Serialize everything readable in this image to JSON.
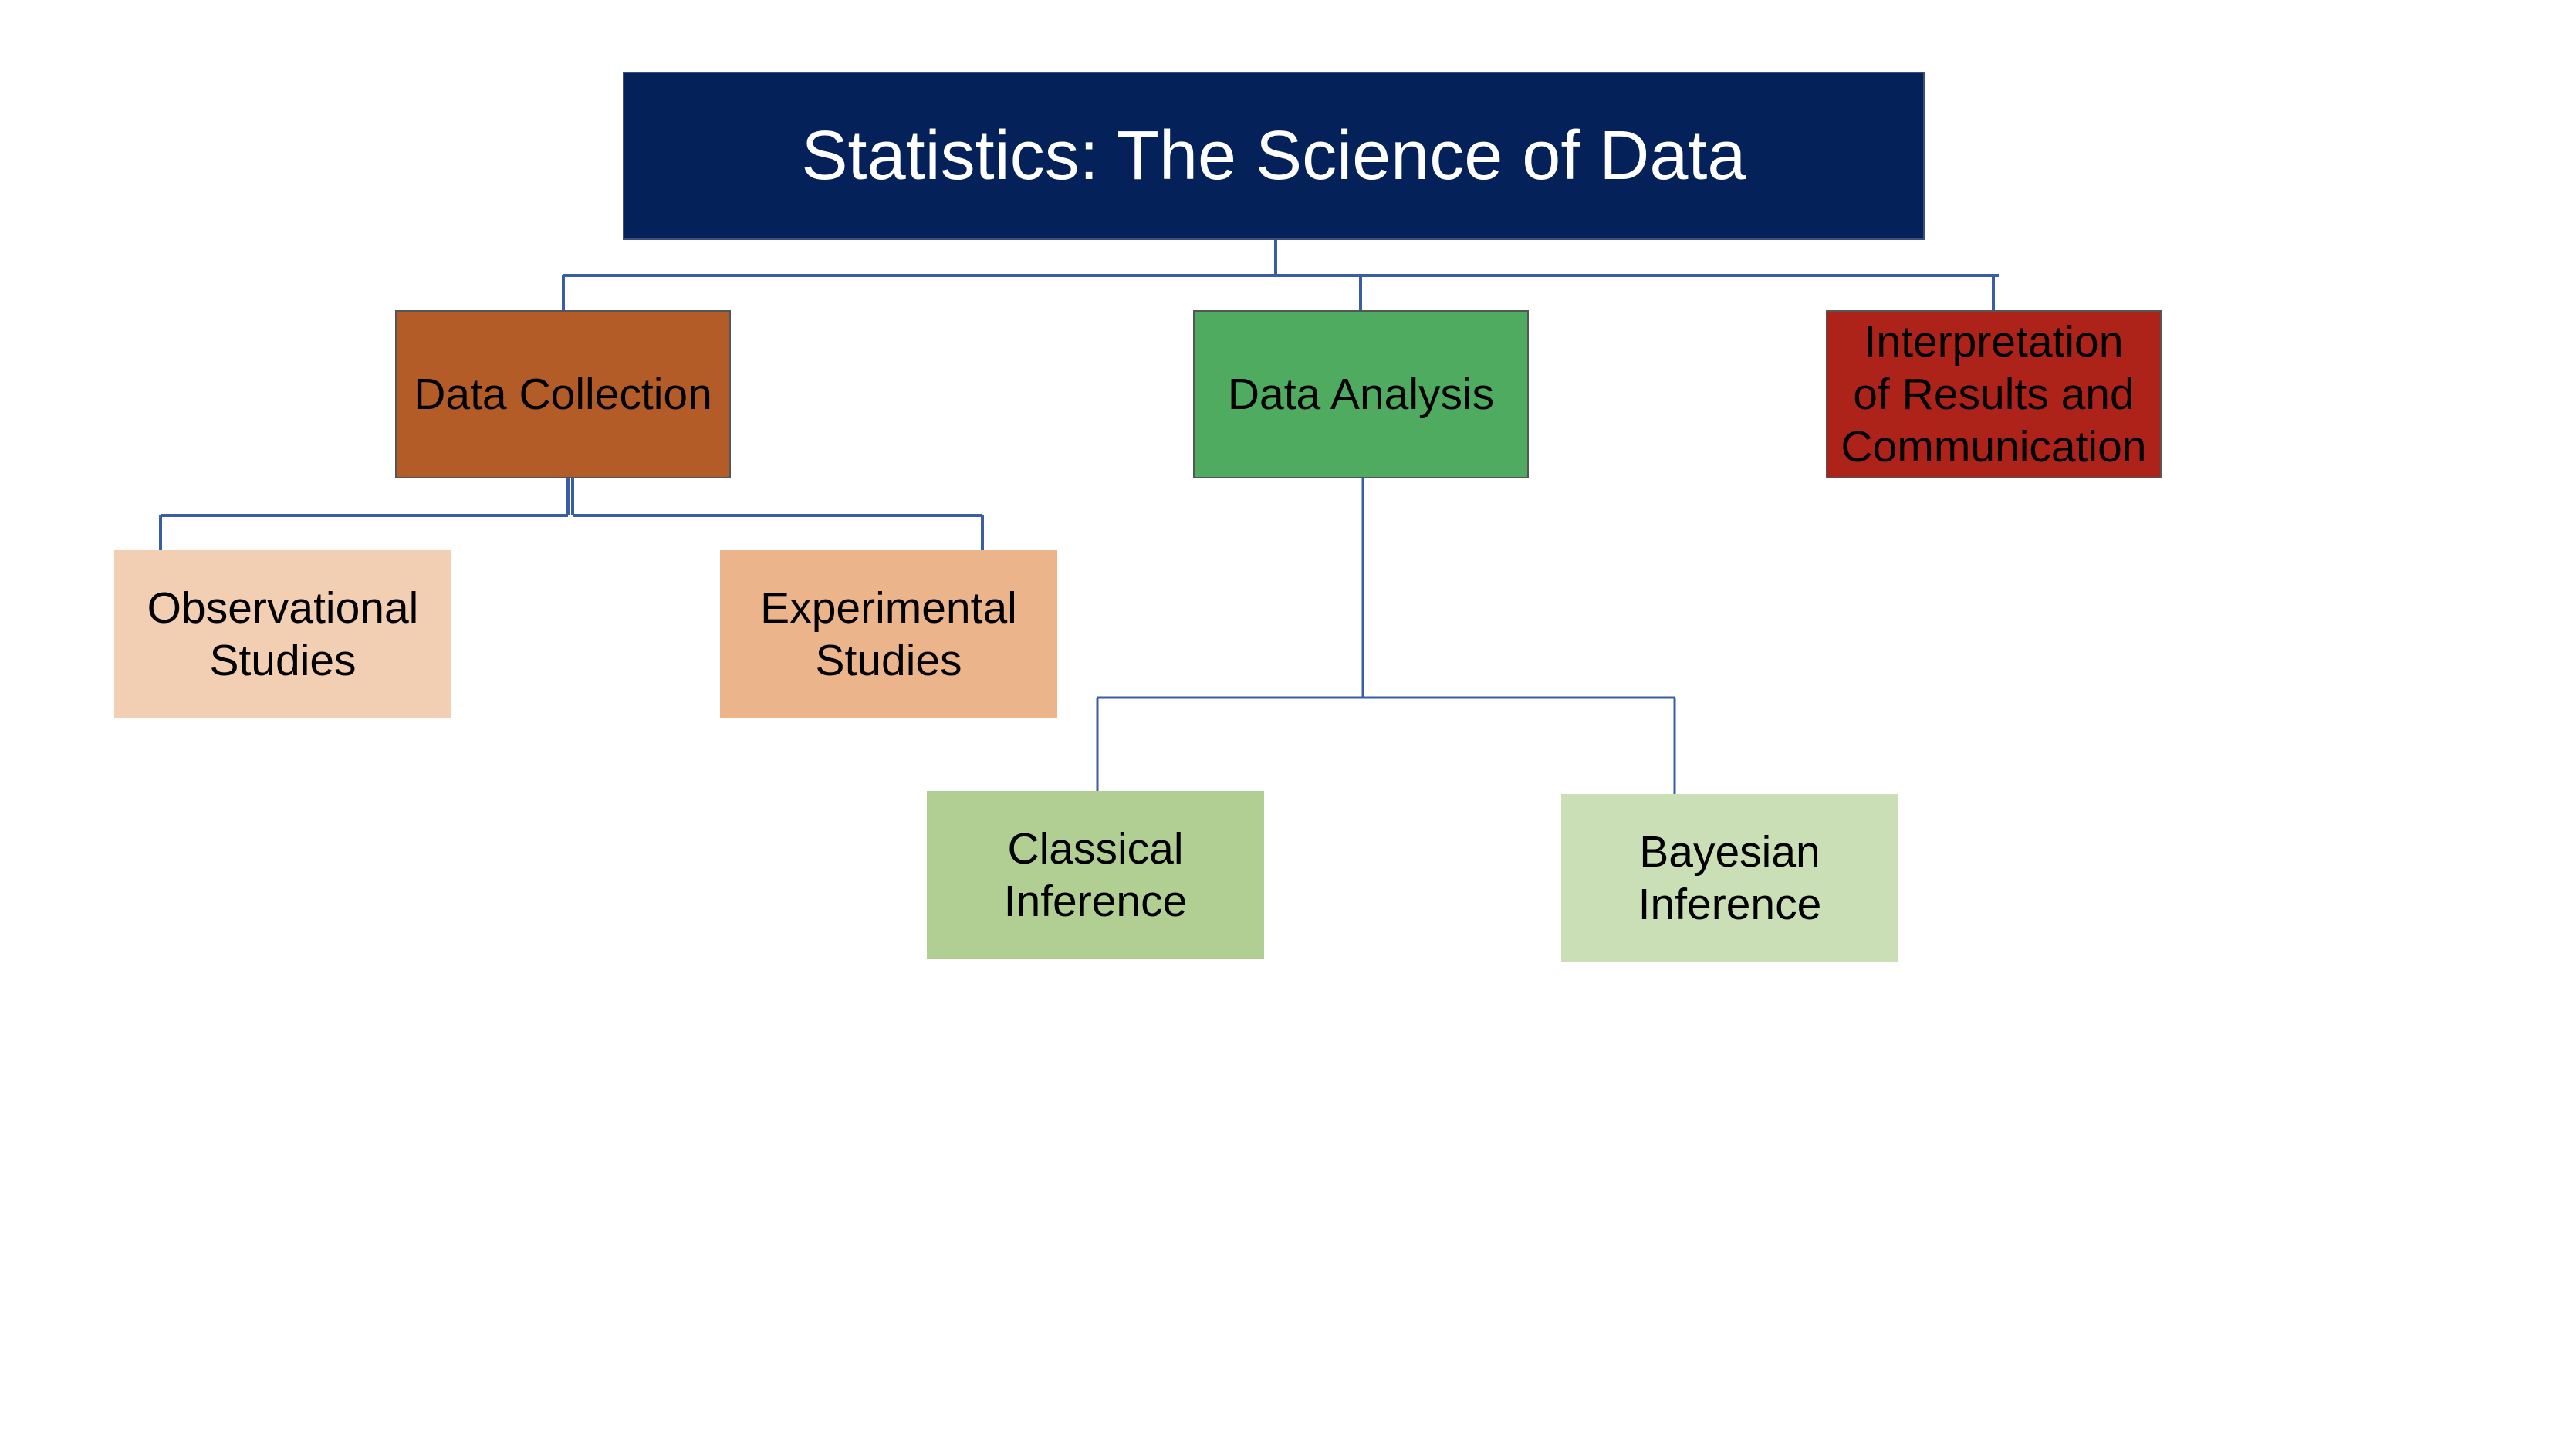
{
  "root": {
    "label": "Statistics: The Science of Data",
    "color": "#05215a"
  },
  "branches": [
    {
      "label": "Data Collection",
      "color": "#b35c28",
      "children": [
        {
          "label": "Observational\nStudies",
          "color": "#f2ceb3"
        },
        {
          "label": "Experimental\nStudies",
          "color": "#ecb48b"
        }
      ]
    },
    {
      "label": "Data Analysis",
      "color": "#4fab5f",
      "children": [
        {
          "label": "Classical\nInference",
          "color": "#b1cf93"
        },
        {
          "label": "Bayesian\nInference",
          "color": "#cbdfb7"
        }
      ]
    },
    {
      "label": "Interpretation\nof Results and\nCommunication",
      "color": "#ad2219",
      "children": []
    }
  ],
  "connector_color": "#3a5ea6"
}
